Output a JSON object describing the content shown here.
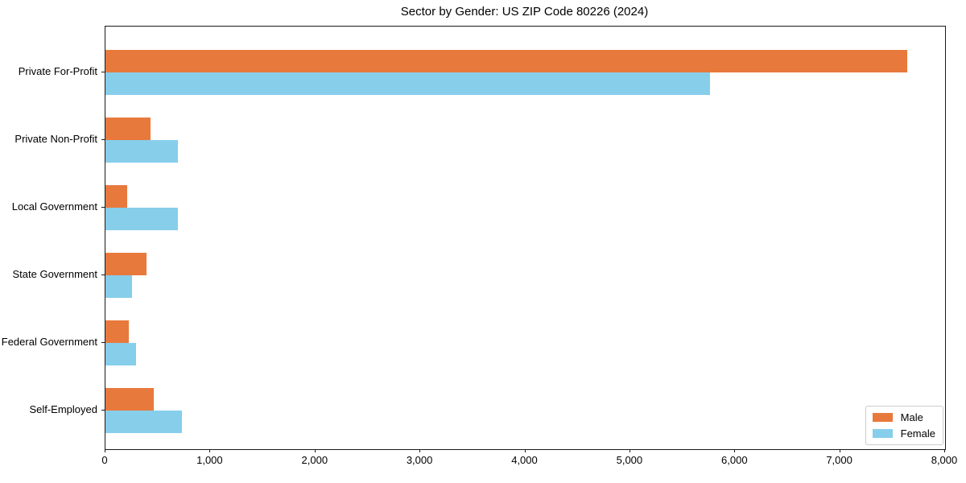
{
  "chart_data": {
    "type": "bar",
    "orientation": "horizontal",
    "title": "Sector by Gender: US ZIP Code 80226 (2024)",
    "categories": [
      "Private For-Profit",
      "Private Non-Profit",
      "Local Government",
      "State Government",
      "Federal Government",
      "Self-Employed"
    ],
    "series": [
      {
        "name": "Male",
        "color": "#E8793D",
        "values": [
          7640,
          430,
          210,
          390,
          220,
          460
        ]
      },
      {
        "name": "Female",
        "color": "#87CEEB",
        "values": [
          5760,
          690,
          690,
          250,
          290,
          730
        ]
      }
    ],
    "xlabel": "",
    "ylabel": "",
    "xlim": [
      0,
      8000
    ],
    "xticks": [
      0,
      1000,
      2000,
      3000,
      4000,
      5000,
      6000,
      7000,
      8000
    ],
    "xtick_labels": [
      "0",
      "1,000",
      "2,000",
      "3,000",
      "4,000",
      "5,000",
      "6,000",
      "7,000",
      "8,000"
    ],
    "grid": false,
    "legend": {
      "position": "lower-right"
    }
  }
}
